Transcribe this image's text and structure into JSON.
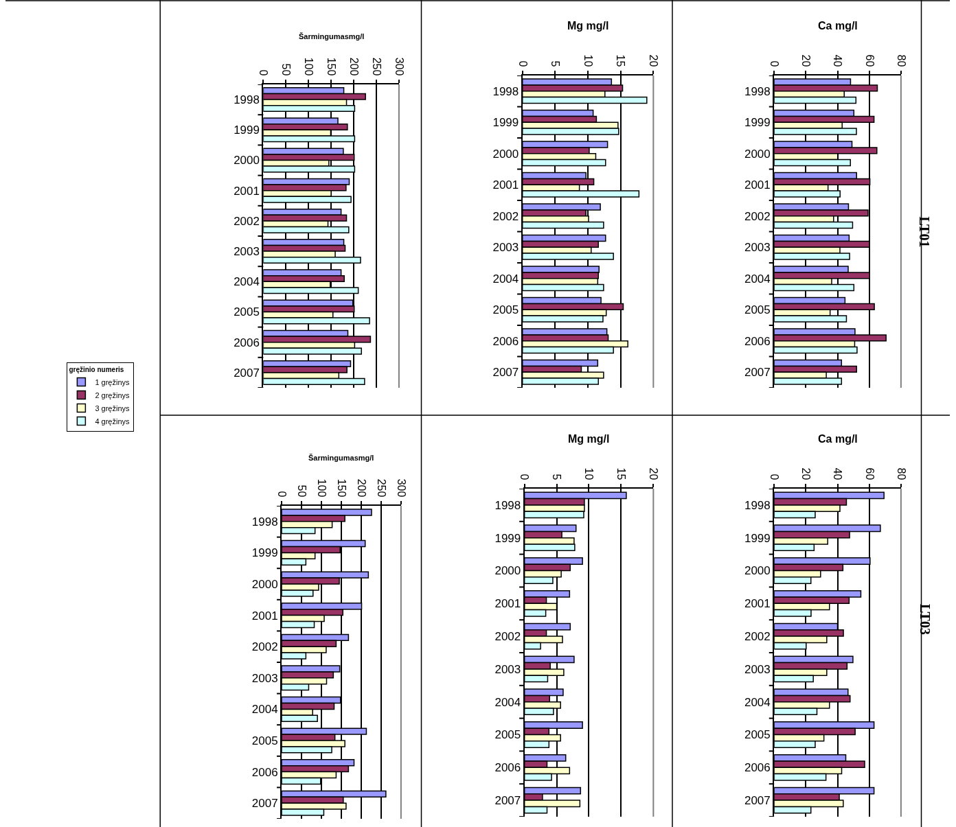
{
  "chart_data": [
    {
      "type": "bar",
      "orientation": "horizontal",
      "title": "Šarmingumasmg/l",
      "categories": [
        "1998",
        "1999",
        "2000",
        "2001",
        "2002",
        "2003",
        "2004",
        "2005",
        "2006",
        "2007"
      ],
      "xlim": [
        0,
        300
      ],
      "xticks": [
        0,
        50,
        100,
        150,
        200,
        250,
        300
      ],
      "grid": "x",
      "legend": "left",
      "legend_title": "gręžinio numeris",
      "series": [
        {
          "name": "1 gręžinys",
          "color": "#9999ff",
          "values": [
            178,
            165,
            177,
            190,
            172,
            178,
            172,
            198,
            187,
            193
          ]
        },
        {
          "name": "2 gręžinys",
          "color": "#993366",
          "values": [
            226,
            186,
            201,
            183,
            184,
            181,
            179,
            201,
            237,
            185
          ]
        },
        {
          "name": "3 gręžinys",
          "color": "#ffffcc",
          "values": [
            184,
            149,
            145,
            150,
            143,
            159,
            148,
            154,
            202,
            167
          ]
        },
        {
          "name": "4 gręžinys",
          "color": "#ccffff",
          "values": [
            202,
            202,
            202,
            194,
            189,
            215,
            210,
            235,
            217,
            224
          ]
        }
      ]
    },
    {
      "type": "bar",
      "orientation": "horizontal",
      "title": "Mg mg/l",
      "categories": [
        "1998",
        "1999",
        "2000",
        "2001",
        "2002",
        "2003",
        "2004",
        "2005",
        "2006",
        "2007"
      ],
      "xlim": [
        0,
        20
      ],
      "xticks": [
        0,
        5,
        10,
        15,
        20
      ],
      "grid": "x",
      "series": [
        {
          "color": "#9999ff",
          "values": [
            13.6,
            10.8,
            13.0,
            9.7,
            11.9,
            12.7,
            11.7,
            12.0,
            12.9,
            11.5
          ]
        },
        {
          "color": "#993366",
          "values": [
            15.3,
            11.3,
            10.2,
            10.9,
            9.7,
            11.6,
            11.6,
            15.4,
            13.1,
            9.0
          ]
        },
        {
          "color": "#ffffcc",
          "values": [
            12.6,
            14.6,
            11.2,
            8.7,
            10.1,
            10.5,
            11.5,
            12.8,
            16.1,
            12.4
          ]
        },
        {
          "color": "#ccffff",
          "values": [
            19.0,
            14.7,
            12.7,
            17.8,
            12.4,
            13.9,
            12.4,
            12.3,
            13.9,
            11.6
          ]
        }
      ]
    },
    {
      "type": "bar",
      "orientation": "horizontal",
      "title": "Ca mg/l",
      "categories": [
        "1998",
        "1999",
        "2000",
        "2001",
        "2002",
        "2003",
        "2004",
        "2005",
        "2006",
        "2007"
      ],
      "xlim": [
        0,
        80
      ],
      "xticks": [
        0,
        20,
        40,
        60,
        80
      ],
      "grid": "x",
      "annotations": [
        "LT01"
      ],
      "series": [
        {
          "color": "#9999ff",
          "values": [
            48.2,
            50.3,
            49.1,
            52.0,
            46.9,
            47.3,
            46.7,
            44.7,
            51.0,
            42.5
          ]
        },
        {
          "color": "#993366",
          "values": [
            65.1,
            63.0,
            64.8,
            60.4,
            59.2,
            60.1,
            60.2,
            63.2,
            70.6,
            52.0
          ]
        },
        {
          "color": "#ffffcc",
          "values": [
            44.2,
            42.9,
            40.1,
            34.0,
            37.5,
            41.5,
            36.3,
            35.3,
            50.8,
            32.9
          ]
        },
        {
          "color": "#ccffff",
          "values": [
            51.6,
            51.9,
            48.1,
            41.6,
            49.5,
            47.6,
            50.3,
            45.6,
            52.3,
            42.5
          ]
        }
      ]
    },
    {
      "type": "bar",
      "orientation": "horizontal",
      "title": "Šarmingumasmg/l",
      "categories": [
        "1998",
        "1999",
        "2000",
        "2001",
        "2002",
        "2003",
        "2004",
        "2005",
        "2006",
        "2007"
      ],
      "xlim": [
        0,
        300
      ],
      "xticks": [
        0,
        50,
        100,
        150,
        200,
        250,
        300
      ],
      "grid": "x",
      "series": [
        {
          "color": "#9999ff",
          "values": [
            226,
            210,
            218,
            201,
            168,
            146,
            148,
            213,
            182,
            262
          ]
        },
        {
          "color": "#993366",
          "values": [
            159,
            147,
            145,
            154,
            137,
            130,
            132,
            134,
            168,
            155
          ]
        },
        {
          "color": "#ffffcc",
          "values": [
            127,
            84,
            93,
            107,
            112,
            113,
            78,
            159,
            137,
            162
          ]
        },
        {
          "color": "#ccffff",
          "values": [
            84,
            61,
            79,
            82,
            61,
            68,
            90,
            126,
            98,
            106
          ]
        }
      ]
    },
    {
      "type": "bar",
      "orientation": "horizontal",
      "title": "Mg mg/l",
      "categories": [
        "1998",
        "1999",
        "2000",
        "2001",
        "2002",
        "2003",
        "2004",
        "2005",
        "2006",
        "2007"
      ],
      "xlim": [
        0,
        20
      ],
      "xticks": [
        0,
        5,
        10,
        15,
        20
      ],
      "grid": "x",
      "series": [
        {
          "color": "#9999ff",
          "values": [
            15.8,
            8.0,
            9.0,
            7.0,
            7.1,
            7.7,
            6.0,
            9.0,
            6.4,
            8.7
          ]
        },
        {
          "color": "#993366",
          "values": [
            9.3,
            5.8,
            7.1,
            3.4,
            3.4,
            4.0,
            3.9,
            3.8,
            3.5,
            2.8
          ]
        },
        {
          "color": "#ffffcc",
          "values": [
            9.3,
            7.7,
            5.7,
            5.0,
            5.9,
            6.1,
            5.6,
            5.6,
            7.0,
            8.6
          ]
        },
        {
          "color": "#ccffff",
          "values": [
            9.2,
            7.8,
            4.4,
            3.3,
            2.5,
            3.6,
            4.5,
            3.8,
            4.2,
            3.5
          ]
        }
      ]
    },
    {
      "type": "bar",
      "orientation": "horizontal",
      "title": "Ca mg/l",
      "categories": [
        "1998",
        "1999",
        "2000",
        "2001",
        "2002",
        "2003",
        "2004",
        "2005",
        "2006",
        "2007"
      ],
      "xlim": [
        0,
        80
      ],
      "xticks": [
        0,
        20,
        40,
        60,
        80
      ],
      "grid": "x",
      "annotations": [
        "LT03"
      ],
      "series": [
        {
          "color": "#9999ff",
          "values": [
            69.3,
            67.0,
            60.5,
            54.7,
            40.0,
            49.7,
            46.6,
            63.0,
            45.2,
            63.0
          ]
        },
        {
          "color": "#993366",
          "values": [
            45.6,
            47.6,
            43.4,
            47.3,
            43.7,
            46.0,
            47.9,
            51.1,
            57.1,
            41.1
          ]
        },
        {
          "color": "#ffffcc",
          "values": [
            41.5,
            33.8,
            29.3,
            34.9,
            33.2,
            33.2,
            34.9,
            31.4,
            42.6,
            43.6
          ]
        },
        {
          "color": "#ccffff",
          "values": [
            25.9,
            25.2,
            23.2,
            23.3,
            20.2,
            24.7,
            27.0,
            25.9,
            32.7,
            23.2
          ]
        }
      ]
    }
  ]
}
